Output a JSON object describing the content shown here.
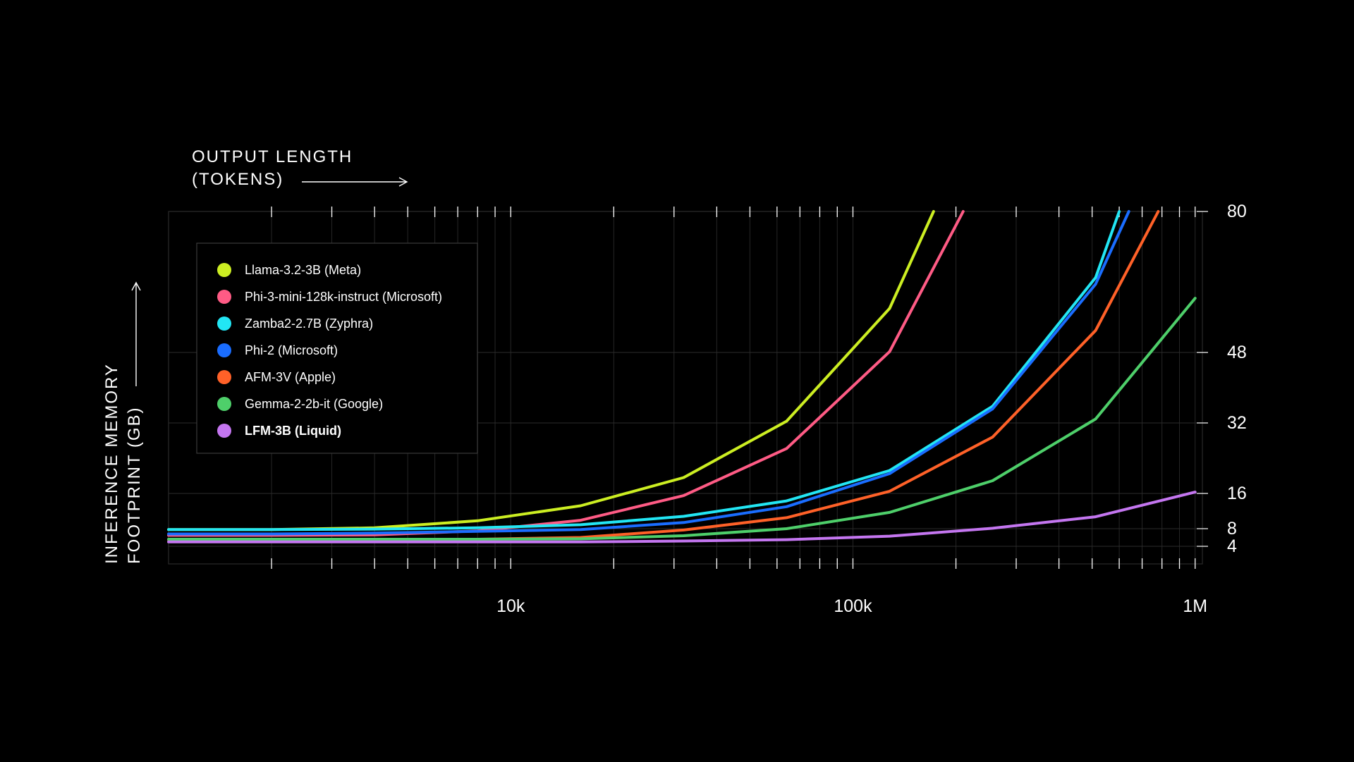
{
  "chart_data": {
    "type": "line",
    "title": "",
    "xlabel": [
      "OUTPUT LENGTH",
      "(TOKENS)"
    ],
    "ylabel": [
      "INFERENCE MEMORY",
      "FOOTPRINT (GB)"
    ],
    "x_scale": "log",
    "xlim": [
      1000,
      1050000
    ],
    "ylim": [
      0,
      80
    ],
    "x_ticks": [
      {
        "value": 10000,
        "label": "10k"
      },
      {
        "value": 100000,
        "label": "100k"
      },
      {
        "value": 1000000,
        "label": "1M"
      }
    ],
    "y_ticks": [
      {
        "value": 4,
        "label": "4"
      },
      {
        "value": 8,
        "label": "8"
      },
      {
        "value": 16,
        "label": "16"
      },
      {
        "value": 32,
        "label": "32"
      },
      {
        "value": 48,
        "label": "48"
      },
      {
        "value": 80,
        "label": "80"
      }
    ],
    "grid": true,
    "legend_position": "top-left",
    "series": [
      {
        "name": "Llama-3.2-3B (Meta)",
        "color": "#ccee22",
        "points": [
          [
            1000,
            7.8
          ],
          [
            2000,
            7.8
          ],
          [
            4000,
            8.2
          ],
          [
            8000,
            9.8
          ],
          [
            16000,
            13.2
          ],
          [
            32000,
            19.6
          ],
          [
            64000,
            32.4
          ],
          [
            128000,
            58.0
          ],
          [
            172000,
            80.0
          ]
        ]
      },
      {
        "name": "Phi-3-mini-128k-instruct (Microsoft)",
        "color": "#ff5b85",
        "points": [
          [
            1000,
            6.5
          ],
          [
            2000,
            6.5
          ],
          [
            4000,
            6.6
          ],
          [
            8000,
            7.5
          ],
          [
            16000,
            9.9
          ],
          [
            32000,
            15.5
          ],
          [
            64000,
            26.2
          ],
          [
            128000,
            48.2
          ],
          [
            210000,
            80.0
          ]
        ]
      },
      {
        "name": "Zamba2-2.7B (Zyphra)",
        "color": "#22e6f4",
        "points": [
          [
            1000,
            7.8
          ],
          [
            2000,
            7.8
          ],
          [
            4000,
            7.9
          ],
          [
            8000,
            8.2
          ],
          [
            16000,
            8.9
          ],
          [
            32000,
            10.8
          ],
          [
            64000,
            14.3
          ],
          [
            128000,
            21.2
          ],
          [
            256000,
            35.8
          ],
          [
            512000,
            65.0
          ],
          [
            600000,
            80.0
          ]
        ]
      },
      {
        "name": "Phi-2 (Microsoft)",
        "color": "#1a6dff",
        "points": [
          [
            1000,
            6.8
          ],
          [
            2000,
            6.8
          ],
          [
            4000,
            7.0
          ],
          [
            8000,
            7.4
          ],
          [
            16000,
            7.8
          ],
          [
            32000,
            9.4
          ],
          [
            64000,
            13.0
          ],
          [
            128000,
            20.5
          ],
          [
            256000,
            35.2
          ],
          [
            512000,
            63.5
          ],
          [
            640000,
            80.0
          ]
        ]
      },
      {
        "name": "AFM-3V (Apple)",
        "color": "#ff6128",
        "points": [
          [
            1000,
            5.5
          ],
          [
            2000,
            5.5
          ],
          [
            4000,
            5.5
          ],
          [
            8000,
            5.6
          ],
          [
            16000,
            6.0
          ],
          [
            32000,
            7.7
          ],
          [
            64000,
            10.5
          ],
          [
            128000,
            16.5
          ],
          [
            256000,
            28.8
          ],
          [
            512000,
            53.0
          ],
          [
            780000,
            80.0
          ]
        ]
      },
      {
        "name": "Gemma-2-2b-it (Google)",
        "color": "#4ecf6a",
        "points": [
          [
            1000,
            5.6
          ],
          [
            2000,
            5.6
          ],
          [
            4000,
            5.6
          ],
          [
            8000,
            5.6
          ],
          [
            16000,
            5.7
          ],
          [
            32000,
            6.4
          ],
          [
            64000,
            8.0
          ],
          [
            128000,
            11.7
          ],
          [
            256000,
            18.9
          ],
          [
            512000,
            32.9
          ],
          [
            1000000,
            60.3
          ]
        ]
      },
      {
        "name": "LFM-3B (Liquid)",
        "color": "#c476f0",
        "points": [
          [
            1000,
            5.0
          ],
          [
            2000,
            5.0
          ],
          [
            4000,
            5.0
          ],
          [
            8000,
            5.0
          ],
          [
            16000,
            5.0
          ],
          [
            32000,
            5.2
          ],
          [
            64000,
            5.5
          ],
          [
            128000,
            6.3
          ],
          [
            256000,
            8.1
          ],
          [
            512000,
            10.7
          ],
          [
            1000000,
            16.3
          ]
        ]
      }
    ]
  }
}
